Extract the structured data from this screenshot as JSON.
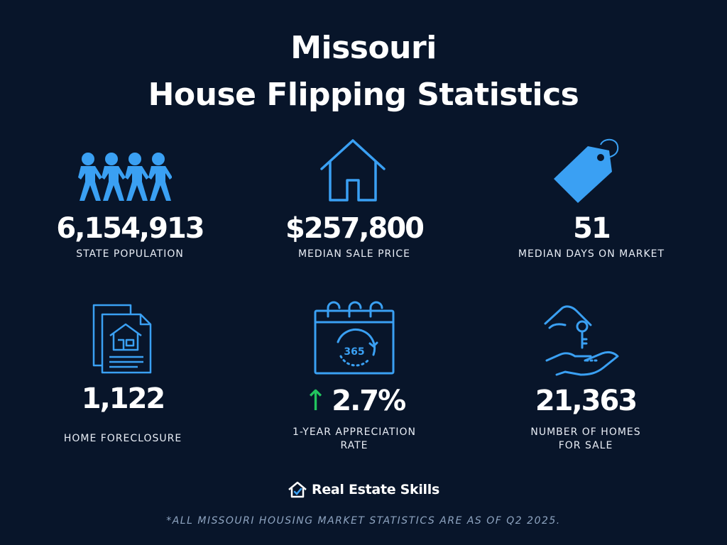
{
  "title": {
    "line1": "Missouri",
    "line2": "House Flipping Statistics"
  },
  "colors": {
    "background": "#08152a",
    "icon_blue": "#3aa0f3",
    "arrow_green": "#22c55e",
    "text": "#ffffff",
    "footnote": "#8ea4c0"
  },
  "stats": [
    {
      "icon": "people-icon",
      "value": "6,154,913",
      "label": "STATE POPULATION"
    },
    {
      "icon": "house-icon",
      "value": "$257,800",
      "label": "MEDIAN SALE PRICE"
    },
    {
      "icon": "price-tag-icon",
      "value": "51",
      "label": "MEDIAN DAYS ON MARKET"
    },
    {
      "icon": "foreclosure-document-icon",
      "value": "1,122",
      "label": "HOME FORECLOSURE"
    },
    {
      "icon": "calendar-365-icon",
      "arrow": "↑",
      "value": "2.7%",
      "label_line1": "1-YEAR APPRECIATION",
      "label_line2": "RATE"
    },
    {
      "icon": "hand-keys-icon",
      "value": "21,363",
      "label_line1": "NUMBER OF HOMES",
      "label_line2": "FOR SALE"
    }
  ],
  "brand": {
    "icon": "house-check-logo-icon",
    "name": "Real Estate Skills"
  },
  "footnote": "*ALL MISSOURI  HOUSING MARKET STATISTICS ARE AS OF Q2 2025."
}
